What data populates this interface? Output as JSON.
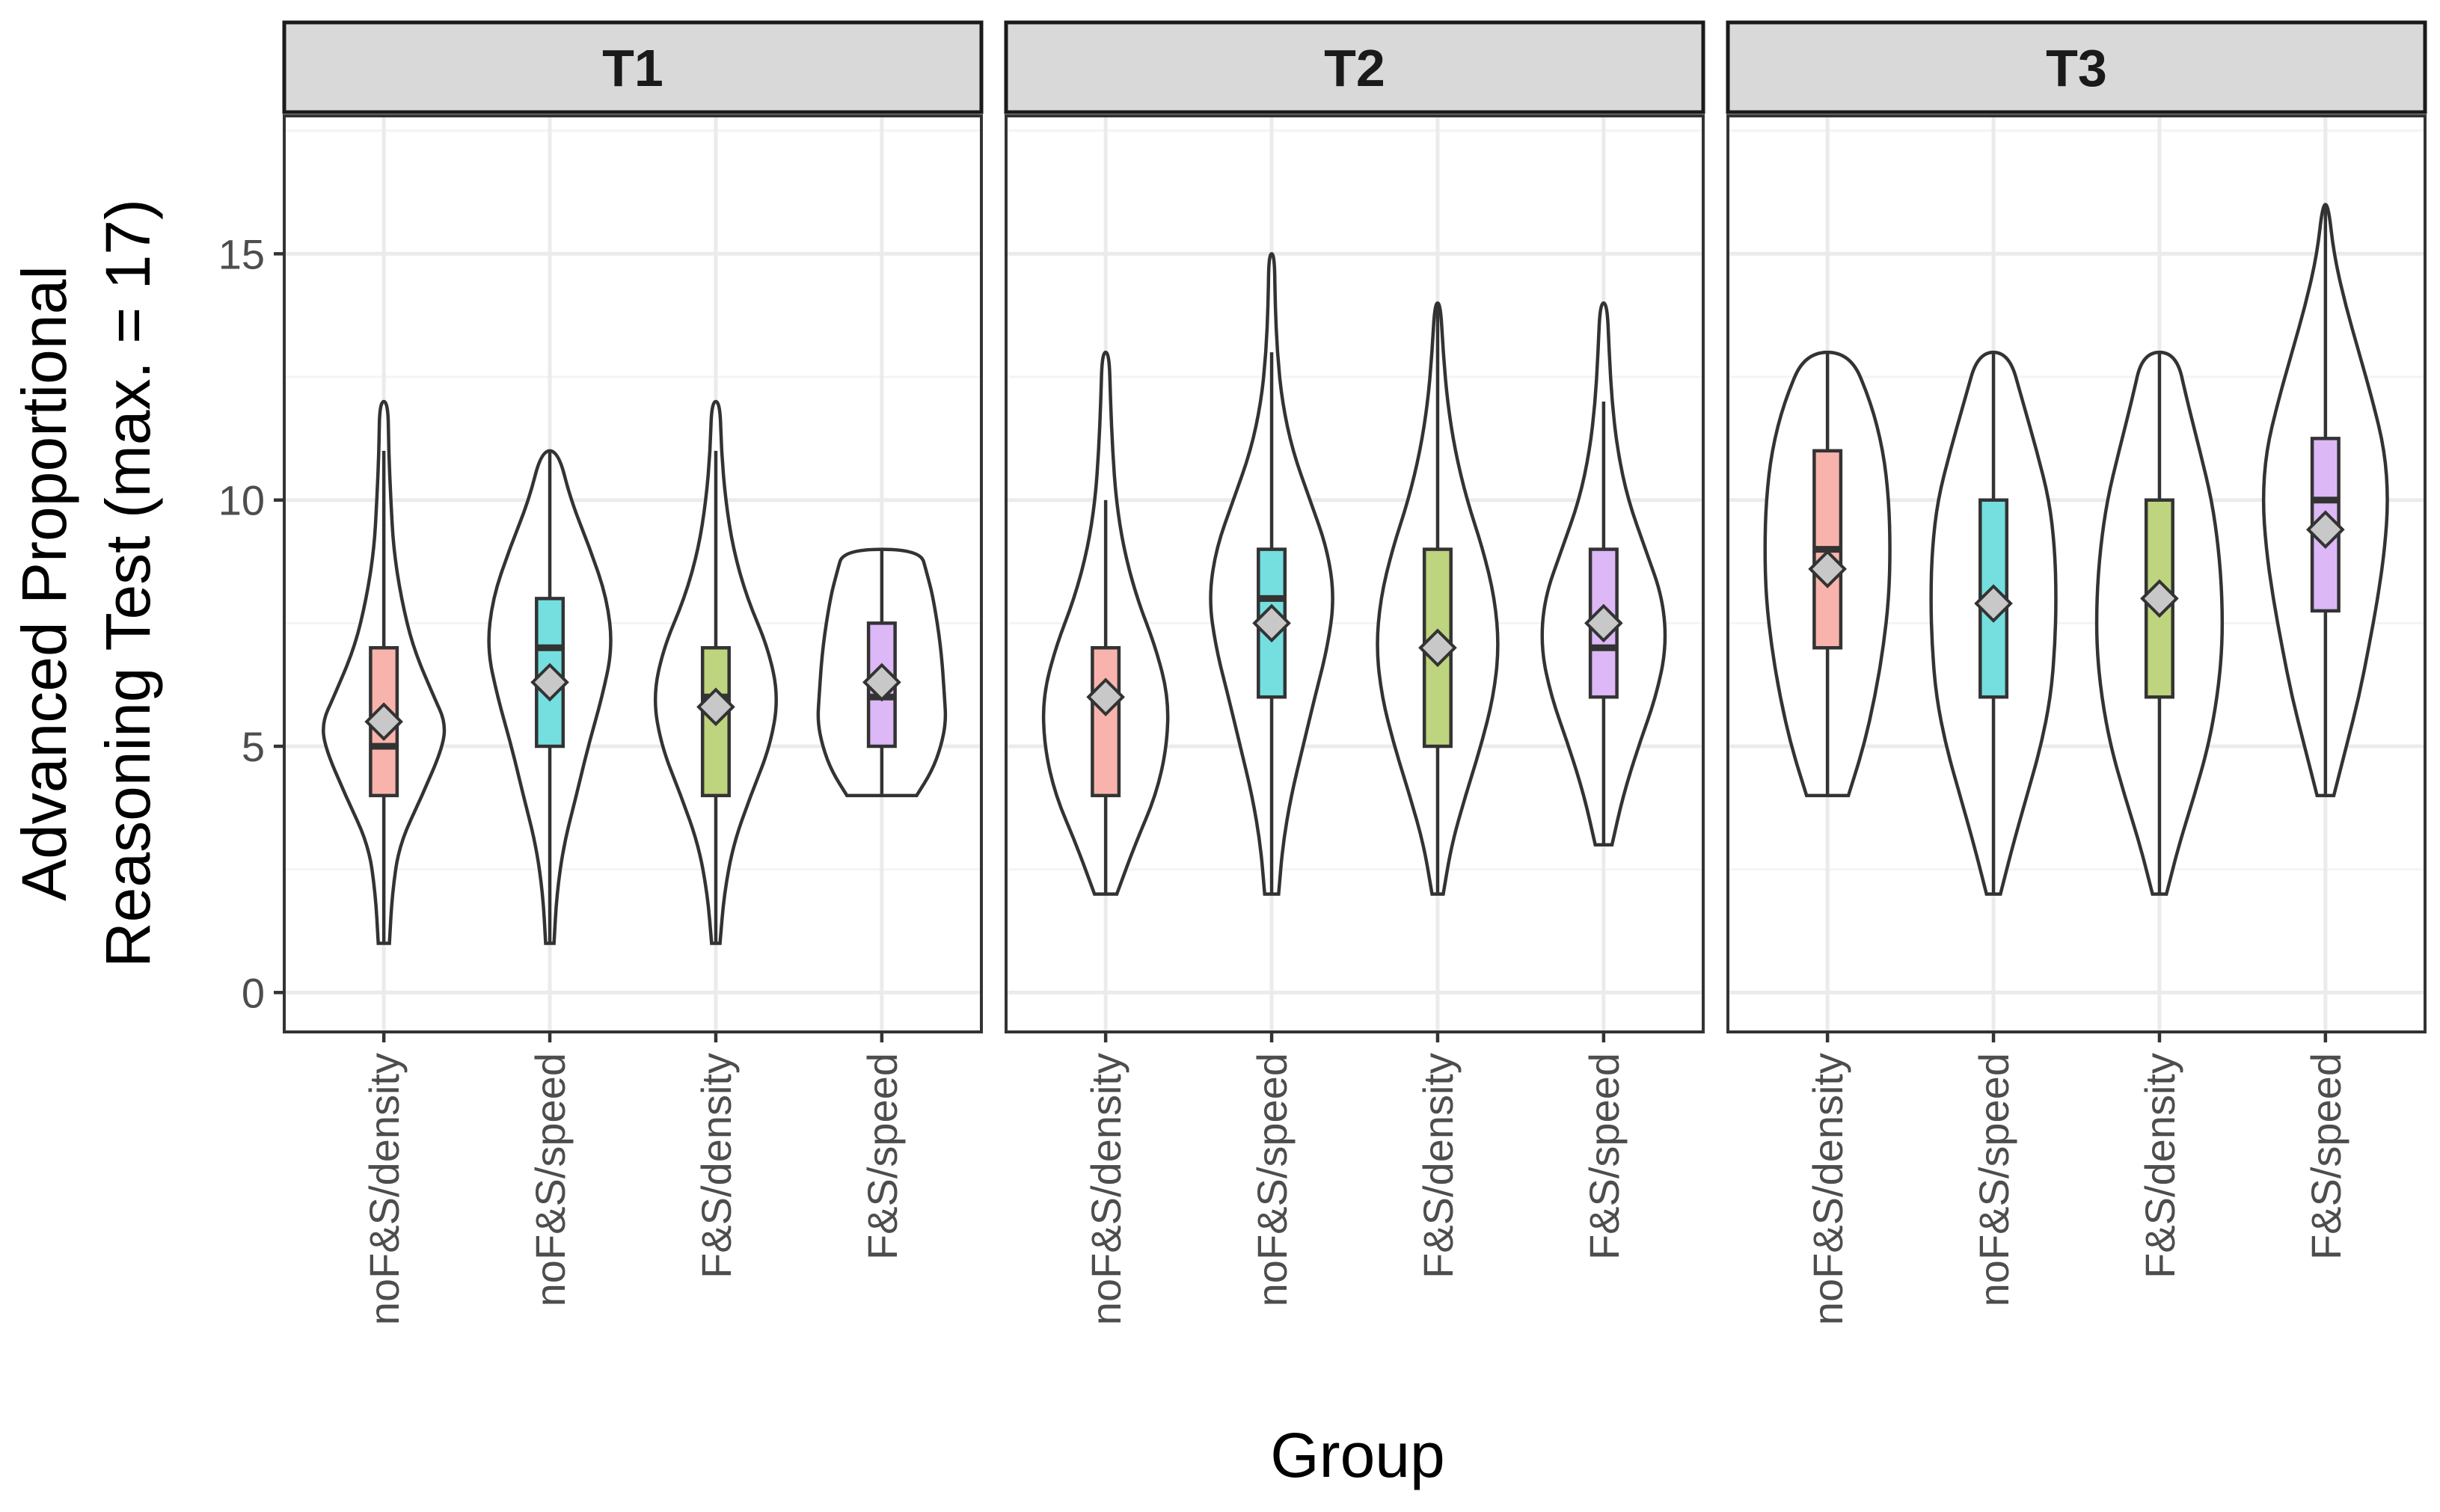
{
  "chart_data": {
    "type": "violin",
    "ylabel_lines": [
      "Advanced Proportional",
      "Reasoning Test (max. = 17)"
    ],
    "xlabel": "Group",
    "ylim": [
      -0.8,
      17.8
    ],
    "yticks": [
      0,
      5,
      10,
      15
    ],
    "ytick_labels": [
      "0",
      "5",
      "10",
      "15"
    ],
    "groups": [
      "noF&S/density",
      "noF&S/speed",
      "F&S/density",
      "F&S/speed"
    ],
    "colors": {
      "noF&S/density": "#f8b4ac",
      "noF&S/speed": "#75dfe0",
      "F&S/density": "#bfd47e",
      "F&S/speed": "#dcb8f7"
    },
    "panels": [
      {
        "label": "T1",
        "series": [
          {
            "group": "noF&S/density",
            "min": 1,
            "max": 12,
            "q1": 4,
            "median": 5,
            "q3": 7,
            "whisker_low": 1,
            "whisker_high": 11,
            "mean": 5.5,
            "density": [
              [
                1,
                0.08
              ],
              [
                2,
                0.12
              ],
              [
                3,
                0.22
              ],
              [
                4,
                0.55
              ],
              [
                5,
                0.85
              ],
              [
                5.5,
                0.88
              ],
              [
                6,
                0.72
              ],
              [
                7,
                0.42
              ],
              [
                8,
                0.25
              ],
              [
                9,
                0.14
              ],
              [
                10,
                0.1
              ],
              [
                11,
                0.07
              ],
              [
                12,
                0.06
              ]
            ]
          },
          {
            "group": "noF&S/speed",
            "min": 1,
            "max": 11,
            "q1": 5,
            "median": 7,
            "q3": 8,
            "whisker_low": 1,
            "whisker_high": 11,
            "mean": 6.3,
            "density": [
              [
                1,
                0.06
              ],
              [
                2,
                0.1
              ],
              [
                3,
                0.2
              ],
              [
                4,
                0.38
              ],
              [
                5,
                0.55
              ],
              [
                6,
                0.75
              ],
              [
                7,
                0.9
              ],
              [
                8,
                0.82
              ],
              [
                9,
                0.58
              ],
              [
                10,
                0.3
              ],
              [
                11,
                0.12
              ]
            ]
          },
          {
            "group": "F&S/density",
            "min": 1,
            "max": 12,
            "q1": 4,
            "median": 6,
            "q3": 7,
            "whisker_low": 1,
            "whisker_high": 11,
            "mean": 5.8,
            "density": [
              [
                1,
                0.06
              ],
              [
                2,
                0.12
              ],
              [
                3,
                0.25
              ],
              [
                4,
                0.5
              ],
              [
                5,
                0.78
              ],
              [
                6,
                0.9
              ],
              [
                7,
                0.75
              ],
              [
                8,
                0.45
              ],
              [
                9,
                0.25
              ],
              [
                10,
                0.14
              ],
              [
                11,
                0.08
              ],
              [
                12,
                0.06
              ]
            ]
          },
          {
            "group": "F&S/speed",
            "min": 4,
            "max": 9,
            "q1": 5,
            "median": 6,
            "q3": 7.5,
            "whisker_low": 4,
            "whisker_high": 9,
            "mean": 6.3,
            "density": [
              [
                4,
                0.5
              ],
              [
                4.5,
                0.72
              ],
              [
                5,
                0.85
              ],
              [
                5.5,
                0.92
              ],
              [
                6,
                0.9
              ],
              [
                7,
                0.85
              ],
              [
                8,
                0.74
              ],
              [
                8.5,
                0.65
              ],
              [
                9,
                0.55
              ]
            ]
          }
        ]
      },
      {
        "label": "T2",
        "series": [
          {
            "group": "noF&S/density",
            "min": 2,
            "max": 13,
            "q1": 4,
            "median": 6,
            "q3": 7,
            "whisker_low": 2,
            "whisker_high": 10,
            "mean": 6.0,
            "density": [
              [
                2,
                0.16
              ],
              [
                3,
                0.42
              ],
              [
                4,
                0.72
              ],
              [
                5,
                0.88
              ],
              [
                6,
                0.9
              ],
              [
                7,
                0.72
              ],
              [
                8,
                0.45
              ],
              [
                9,
                0.26
              ],
              [
                10,
                0.15
              ],
              [
                11,
                0.1
              ],
              [
                12,
                0.07
              ],
              [
                13,
                0.05
              ]
            ]
          },
          {
            "group": "noF&S/speed",
            "min": 2,
            "max": 15,
            "q1": 6,
            "median": 8,
            "q3": 9,
            "whisker_low": 2,
            "whisker_high": 13,
            "mean": 7.5,
            "density": [
              [
                2,
                0.1
              ],
              [
                3,
                0.16
              ],
              [
                4,
                0.28
              ],
              [
                5,
                0.45
              ],
              [
                6,
                0.62
              ],
              [
                7,
                0.8
              ],
              [
                8,
                0.9
              ],
              [
                9,
                0.8
              ],
              [
                10,
                0.55
              ],
              [
                11,
                0.3
              ],
              [
                12,
                0.15
              ],
              [
                13,
                0.08
              ],
              [
                14,
                0.05
              ],
              [
                15,
                0.04
              ]
            ]
          },
          {
            "group": "F&S/density",
            "min": 2,
            "max": 14,
            "q1": 5,
            "median": 7,
            "q3": 9,
            "whisker_low": 2,
            "whisker_high": 14,
            "mean": 7.0,
            "density": [
              [
                2,
                0.08
              ],
              [
                3,
                0.2
              ],
              [
                4,
                0.4
              ],
              [
                5,
                0.62
              ],
              [
                6,
                0.8
              ],
              [
                7,
                0.88
              ],
              [
                8,
                0.82
              ],
              [
                9,
                0.65
              ],
              [
                10,
                0.42
              ],
              [
                11,
                0.25
              ],
              [
                12,
                0.14
              ],
              [
                13,
                0.08
              ],
              [
                14,
                0.04
              ]
            ]
          },
          {
            "group": "F&S/speed",
            "min": 3,
            "max": 14,
            "q1": 6,
            "median": 7,
            "q3": 9,
            "whisker_low": 3,
            "whisker_high": 12,
            "mean": 7.5,
            "density": [
              [
                3,
                0.12
              ],
              [
                4,
                0.28
              ],
              [
                5,
                0.5
              ],
              [
                6,
                0.75
              ],
              [
                7,
                0.9
              ],
              [
                8,
                0.85
              ],
              [
                9,
                0.6
              ],
              [
                10,
                0.35
              ],
              [
                11,
                0.2
              ],
              [
                12,
                0.12
              ],
              [
                13,
                0.08
              ],
              [
                14,
                0.05
              ]
            ]
          }
        ]
      },
      {
        "label": "T3",
        "series": [
          {
            "group": "noF&S/density",
            "min": 4,
            "max": 13,
            "q1": 7,
            "median": 9,
            "q3": 11,
            "whisker_low": 4,
            "whisker_high": 13,
            "mean": 8.6,
            "density": [
              [
                4,
                0.3
              ],
              [
                5,
                0.52
              ],
              [
                6,
                0.68
              ],
              [
                7,
                0.8
              ],
              [
                8,
                0.88
              ],
              [
                9,
                0.9
              ],
              [
                10,
                0.88
              ],
              [
                11,
                0.8
              ],
              [
                12,
                0.62
              ],
              [
                13,
                0.32
              ]
            ]
          },
          {
            "group": "noF&S/speed",
            "min": 2,
            "max": 13,
            "q1": 6,
            "median": 8,
            "q3": 10,
            "whisker_low": 2,
            "whisker_high": 13,
            "mean": 7.9,
            "density": [
              [
                2,
                0.1
              ],
              [
                3,
                0.28
              ],
              [
                4,
                0.48
              ],
              [
                5,
                0.68
              ],
              [
                6,
                0.82
              ],
              [
                7,
                0.88
              ],
              [
                8,
                0.9
              ],
              [
                9,
                0.88
              ],
              [
                10,
                0.8
              ],
              [
                11,
                0.62
              ],
              [
                12,
                0.42
              ],
              [
                13,
                0.22
              ]
            ]
          },
          {
            "group": "F&S/density",
            "min": 2,
            "max": 13,
            "q1": 6,
            "median": 8,
            "q3": 10,
            "whisker_low": 2,
            "whisker_high": 13,
            "mean": 8.0,
            "density": [
              [
                2,
                0.1
              ],
              [
                3,
                0.28
              ],
              [
                4,
                0.5
              ],
              [
                5,
                0.7
              ],
              [
                6,
                0.83
              ],
              [
                7,
                0.9
              ],
              [
                8,
                0.9
              ],
              [
                9,
                0.85
              ],
              [
                10,
                0.75
              ],
              [
                11,
                0.58
              ],
              [
                12,
                0.4
              ],
              [
                13,
                0.24
              ]
            ]
          },
          {
            "group": "F&S/speed",
            "min": 4,
            "max": 16,
            "q1": 7.75,
            "median": 10,
            "q3": 11.25,
            "whisker_low": 4,
            "whisker_high": 16,
            "mean": 9.4,
            "density": [
              [
                4,
                0.12
              ],
              [
                5,
                0.3
              ],
              [
                6,
                0.48
              ],
              [
                7,
                0.62
              ],
              [
                8,
                0.75
              ],
              [
                9,
                0.85
              ],
              [
                10,
                0.9
              ],
              [
                11,
                0.85
              ],
              [
                12,
                0.68
              ],
              [
                13,
                0.48
              ],
              [
                14,
                0.28
              ],
              [
                15,
                0.12
              ],
              [
                16,
                0.04
              ]
            ]
          }
        ]
      }
    ]
  }
}
